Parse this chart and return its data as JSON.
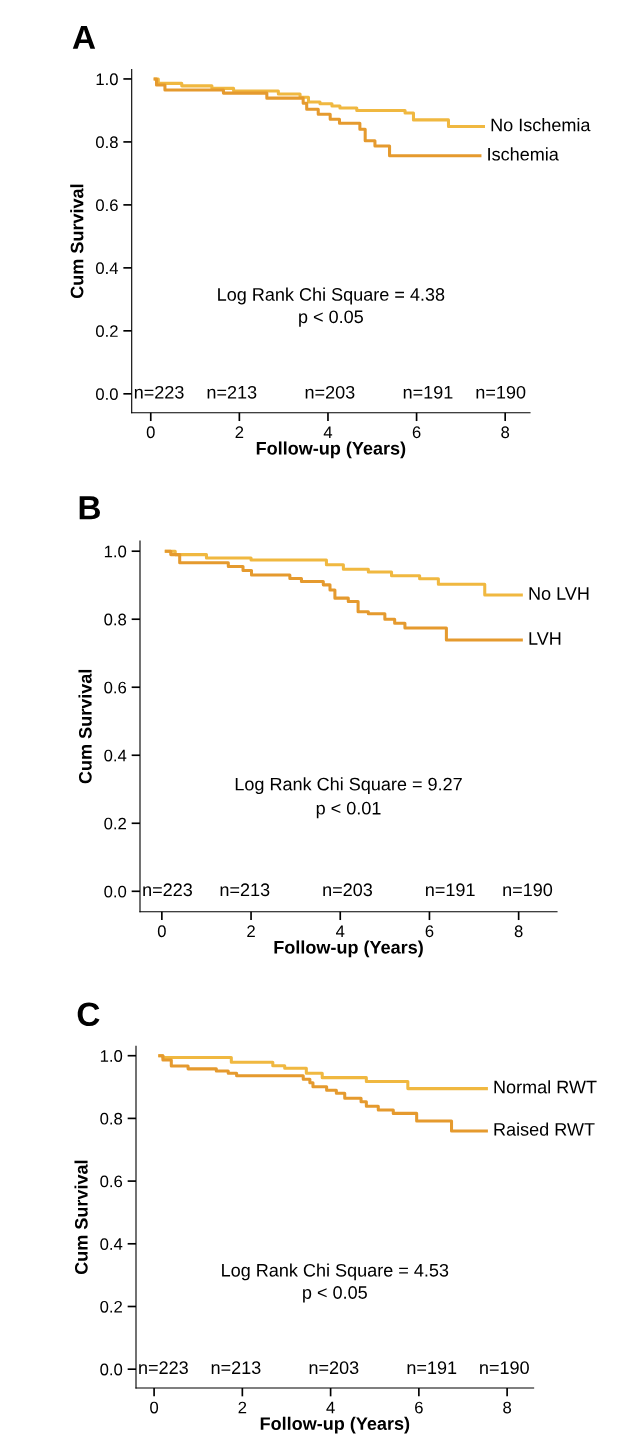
{
  "chart_data": [
    {
      "type": "step",
      "title": "A",
      "xlabel": "Follow-up (Years)",
      "ylabel": "Cum Survival",
      "xlim": [
        -0.43,
        8.56
      ],
      "ylim": [
        -0.06,
        1.03
      ],
      "xticks": [
        0,
        2,
        4,
        6,
        8
      ],
      "yticks": [
        {
          "value": 0,
          "label": "0.0"
        },
        {
          "value": 0.2,
          "label": "0.2"
        },
        {
          "value": 0.4,
          "label": "0.4"
        },
        {
          "value": 0.6,
          "label": "0.6"
        },
        {
          "value": 0.8,
          "label": "0.8"
        },
        {
          "value": 1,
          "label": "1.0"
        }
      ],
      "grid": false,
      "legend": false,
      "series": [
        {
          "name": "No Ischemia",
          "color": "#f0b840",
          "x": [
            0.1,
            0.17,
            0.7,
            1.38,
            1.87,
            2.88,
            3.37,
            3.56,
            3.82,
            4.09,
            4.27,
            4.65,
            5.74,
            5.93,
            6.72,
            7.51
          ],
          "values": [
            1.0,
            0.986,
            0.978,
            0.97,
            0.962,
            0.952,
            0.942,
            0.927,
            0.921,
            0.914,
            0.908,
            0.9,
            0.892,
            0.87,
            0.849,
            0.849
          ]
        },
        {
          "name": "Ischemia",
          "color": "#e59a2e",
          "x": [
            0.1,
            0.13,
            0.32,
            1.64,
            2.62,
            3.44,
            3.52,
            3.78,
            4.05,
            4.26,
            4.72,
            4.84,
            5.06,
            5.39,
            7.43
          ],
          "values": [
            1.0,
            0.981,
            0.965,
            0.955,
            0.939,
            0.923,
            0.904,
            0.888,
            0.872,
            0.859,
            0.84,
            0.804,
            0.787,
            0.756,
            0.756
          ]
        }
      ],
      "annotations": [
        "Log Rank Chi Square = 4.38",
        "p < 0.05",
        "n=223",
        "n=213",
        "n=203",
        "n=191",
        "n=190"
      ]
    },
    {
      "type": "step",
      "title": "B",
      "xlabel": "Follow-up (Years)",
      "ylabel": "Cum Survival",
      "xlim": [
        -0.49,
        8.86
      ],
      "ylim": [
        -0.06,
        1.03
      ],
      "xticks": [
        0,
        2,
        4,
        6,
        8
      ],
      "yticks": [
        {
          "value": 0,
          "label": "0.0"
        },
        {
          "value": 0.2,
          "label": "0.2"
        },
        {
          "value": 0.4,
          "label": "0.4"
        },
        {
          "value": 0.6,
          "label": "0.6"
        },
        {
          "value": 0.8,
          "label": "0.8"
        },
        {
          "value": 1,
          "label": "1.0"
        }
      ],
      "grid": false,
      "legend": false,
      "series": [
        {
          "name": "No LVH",
          "color": "#f0b840",
          "x": [
            0.1,
            0.3,
            1.0,
            2.0,
            3.69,
            4.07,
            4.63,
            5.15,
            5.78,
            6.2,
            7.24,
            8.06
          ],
          "values": [
            1.0,
            0.99,
            0.98,
            0.974,
            0.96,
            0.947,
            0.939,
            0.928,
            0.919,
            0.903,
            0.871,
            0.871
          ]
        },
        {
          "name": "LVH",
          "color": "#e59a2e",
          "x": [
            0.1,
            0.2,
            0.4,
            1.49,
            1.82,
            2.01,
            2.87,
            3.13,
            3.62,
            3.77,
            3.88,
            4.18,
            4.4,
            4.63,
            5.0,
            5.22,
            5.45,
            6.38,
            8.06
          ],
          "values": [
            1.0,
            0.99,
            0.966,
            0.955,
            0.943,
            0.93,
            0.92,
            0.911,
            0.901,
            0.886,
            0.862,
            0.852,
            0.822,
            0.816,
            0.8,
            0.788,
            0.774,
            0.739,
            0.739
          ]
        }
      ],
      "annotations": [
        "Log Rank Chi Square = 9.27",
        "p < 0.01",
        "n=223",
        "n=213",
        "n=203",
        "n=191",
        "n=190"
      ]
    },
    {
      "type": "step",
      "title": "C",
      "xlabel": "Follow-up (Years)",
      "ylabel": "Cum Survival",
      "xlim": [
        -0.41,
        8.6
      ],
      "ylim": [
        -0.06,
        1.03
      ],
      "xticks": [
        0,
        2,
        4,
        6,
        8
      ],
      "yticks": [
        {
          "value": 0,
          "label": "0.0"
        },
        {
          "value": 0.2,
          "label": "0.2"
        },
        {
          "value": 0.4,
          "label": "0.4"
        },
        {
          "value": 0.6,
          "label": "0.6"
        },
        {
          "value": 0.8,
          "label": "0.8"
        },
        {
          "value": 1,
          "label": "1.0"
        }
      ],
      "grid": false,
      "legend": false,
      "series": [
        {
          "name": "Normal RWT",
          "color": "#f0b840",
          "x": [
            0.13,
            0.2,
            1.75,
            2.69,
            2.96,
            3.45,
            3.81,
            4.81,
            5.75,
            7.53
          ],
          "values": [
            1.0,
            0.994,
            0.979,
            0.968,
            0.96,
            0.944,
            0.93,
            0.918,
            0.895,
            0.895
          ]
        },
        {
          "name": "Raised RWT",
          "color": "#e59a2e",
          "x": [
            0.13,
            0.2,
            0.39,
            0.77,
            1.41,
            1.68,
            1.87,
            3.38,
            3.53,
            3.6,
            3.91,
            4.13,
            4.32,
            4.69,
            4.81,
            5.08,
            5.42,
            5.95,
            6.74,
            7.53
          ],
          "values": [
            1.0,
            0.986,
            0.967,
            0.958,
            0.951,
            0.944,
            0.936,
            0.925,
            0.914,
            0.901,
            0.89,
            0.88,
            0.864,
            0.853,
            0.839,
            0.827,
            0.816,
            0.792,
            0.76,
            0.76
          ]
        }
      ],
      "annotations": [
        "Log Rank Chi Square = 4.53",
        "p < 0.05",
        "n=223",
        "n=213",
        "n=203",
        "n=191",
        "n=190"
      ]
    }
  ]
}
